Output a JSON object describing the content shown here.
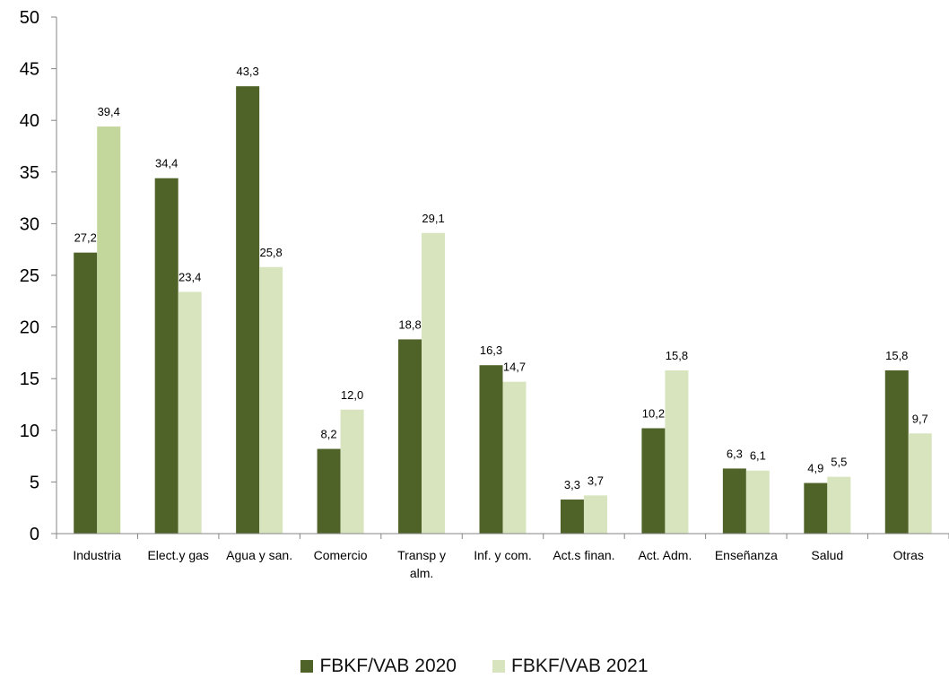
{
  "chart_data": {
    "type": "bar",
    "title": "",
    "xlabel": "",
    "ylabel": "",
    "ylim": [
      0,
      50
    ],
    "yticks": [
      0,
      5,
      10,
      15,
      20,
      25,
      30,
      35,
      40,
      45,
      50
    ],
    "categories": [
      "Industria",
      "Elect.y gas",
      "Agua y san.",
      "Comercio",
      "Transp y alm.",
      "Inf. y com.",
      "Act.s finan.",
      "Act. Adm.",
      "Enseñanza",
      "Salud",
      "Otras"
    ],
    "series": [
      {
        "name": "FBKF/VAB 2020",
        "color": "#4f6228",
        "values": [
          27.2,
          34.4,
          43.3,
          8.2,
          18.8,
          16.3,
          3.3,
          10.2,
          6.3,
          4.9,
          15.8
        ],
        "labels": [
          "27,2",
          "34,4",
          "43,3",
          "8,2",
          "18,8",
          "16,3",
          "3,3",
          "10,2",
          "6,3",
          "4,9",
          "15,8"
        ]
      },
      {
        "name": "FBKF/VAB 2021",
        "color": "#d7e4bd",
        "values": [
          39.4,
          23.4,
          25.8,
          12.0,
          29.1,
          14.7,
          3.7,
          15.8,
          6.1,
          5.5,
          9.7
        ],
        "labels": [
          "39,4",
          "23,4",
          "25,8",
          "12,0",
          "29,1",
          "14,7",
          "3,7",
          "15,8",
          "6,1",
          "5,5",
          "9,7"
        ]
      }
    ],
    "highlight": {
      "series": 1,
      "category": 0,
      "color": "#c3d69b"
    },
    "grid": false,
    "legend_position": "bottom"
  }
}
